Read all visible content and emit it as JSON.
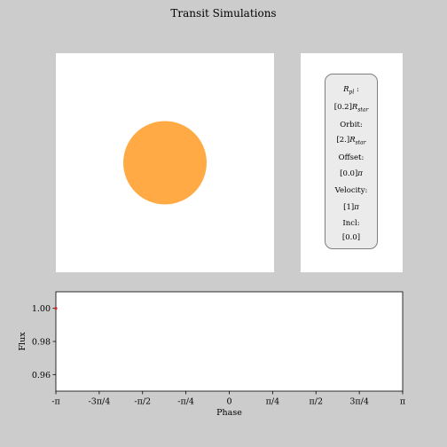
{
  "title": "Transit Simulations",
  "star": {
    "color": "#ffaa44",
    "planet_radius_ratio": 0.2
  },
  "legend": {
    "rpl_label": "R",
    "rpl_sub": "pl",
    "rpl_suffix": " :",
    "rpl_value_prefix": "[0.2]",
    "rpl_value_r": "R",
    "rpl_value_sub": "star",
    "orbit_label": "Orbit:",
    "orbit_value_prefix": "[2.]",
    "orbit_value_r": "R",
    "orbit_value_sub": "star",
    "offset_label": "Offset:",
    "offset_value_prefix": "[0.0]",
    "offset_value_pi": "π",
    "velocity_label": "Velocity:",
    "velocity_value_prefix": "[1]",
    "velocity_value_pi": "π",
    "incl_label": "Incl:",
    "incl_value": "[0.0]"
  },
  "chart_data": {
    "type": "line",
    "xlabel": "Phase",
    "ylabel": "Flux",
    "xlim": [
      -3.14159,
      3.14159
    ],
    "ylim": [
      0.95,
      1.01
    ],
    "x_ticks": [
      -3.14159,
      -2.35619,
      -1.5708,
      -0.7854,
      0,
      0.7854,
      1.5708,
      2.35619,
      3.14159
    ],
    "x_tick_labels": [
      "-π",
      "-3π/4",
      "-π/2",
      "-π/4",
      "0",
      "π/4",
      "π/2",
      "3π/4",
      "π"
    ],
    "y_ticks": [
      0.96,
      0.98,
      1.0
    ],
    "y_tick_labels": [
      "0.96",
      "0.98",
      "1.00"
    ],
    "series": [
      {
        "x": [
          -3.14159
        ],
        "y": [
          1.0
        ],
        "color": "#d62728",
        "marker": "point"
      }
    ]
  }
}
